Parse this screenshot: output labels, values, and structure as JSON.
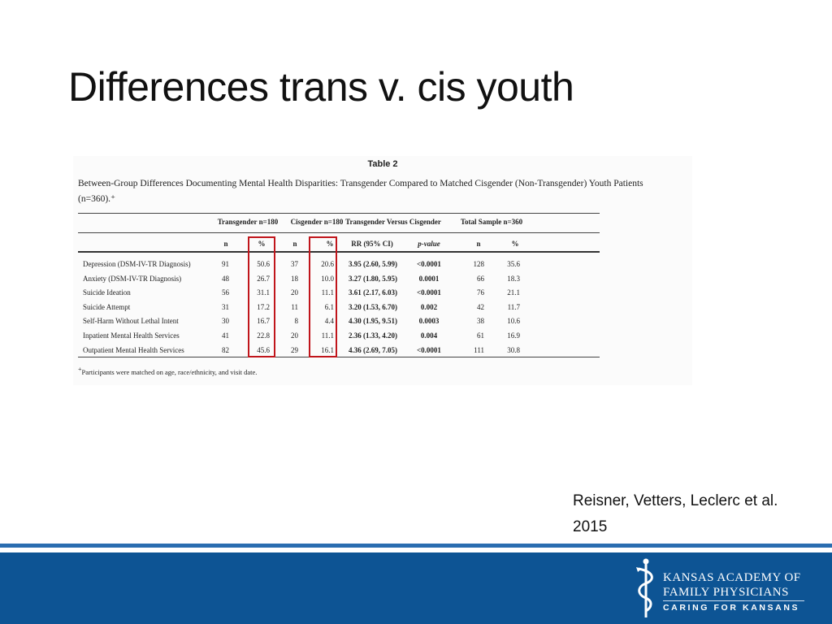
{
  "slide": {
    "title": "Differences trans v. cis youth",
    "citation_line1": "Reisner, Vetters, Leclerc et al.",
    "citation_line2": "2015"
  },
  "table": {
    "label": "Table 2",
    "caption_line1": "Between-Group Differences Documenting Mental Health Disparities: Transgender Compared to Matched Cisgender (Non-Transgender) Youth Patients",
    "caption_line2": "(n=360).⁺",
    "groups": [
      "Transgender n=180",
      "Cisgender n=180",
      "Transgender Versus Cisgender",
      "Total Sample n=360"
    ],
    "subheaders": [
      "n",
      "%",
      "n",
      "%",
      "RR (95% CI)",
      "p-value",
      "n",
      "%"
    ],
    "rows": [
      {
        "label": "Depression (DSM-IV-TR Diagnosis)",
        "tn": "91",
        "tp": "50.6",
        "cn": "37",
        "cp": "20.6",
        "rr": "3.95 (2.60, 5.99)",
        "p": "<0.0001",
        "sn": "128",
        "sp": "35.6"
      },
      {
        "label": "Anxiety (DSM-IV-TR Diagnosis)",
        "tn": "48",
        "tp": "26.7",
        "cn": "18",
        "cp": "10.0",
        "rr": "3.27 (1.80, 5.95)",
        "p": "0.0001",
        "sn": "66",
        "sp": "18.3"
      },
      {
        "label": "Suicide Ideation",
        "tn": "56",
        "tp": "31.1",
        "cn": "20",
        "cp": "11.1",
        "rr": "3.61 (2.17, 6.03)",
        "p": "<0.0001",
        "sn": "76",
        "sp": "21.1"
      },
      {
        "label": "Suicide Attempt",
        "tn": "31",
        "tp": "17.2",
        "cn": "11",
        "cp": "6.1",
        "rr": "3.20 (1.53, 6.70)",
        "p": "0.002",
        "sn": "42",
        "sp": "11.7"
      },
      {
        "label": "Self-Harm Without Lethal Intent",
        "tn": "30",
        "tp": "16.7",
        "cn": "8",
        "cp": "4.4",
        "rr": "4.30 (1.95, 9.51)",
        "p": "0.0003",
        "sn": "38",
        "sp": "10.6"
      },
      {
        "label": "Inpatient Mental Health Services",
        "tn": "41",
        "tp": "22.8",
        "cn": "20",
        "cp": "11.1",
        "rr": "2.36 (1.33, 4.20)",
        "p": "0.004",
        "sn": "61",
        "sp": "16.9"
      },
      {
        "label": "Outpatient Mental Health Services",
        "tn": "82",
        "tp": "45.6",
        "cn": "29",
        "cp": "16.1",
        "rr": "4.36 (2.69, 7.05)",
        "p": "<0.0001",
        "sn": "111",
        "sp": "30.8"
      }
    ],
    "footnote_mark": "+",
    "footnote": "Participants were matched on age, race/ethnicity, and visit date."
  },
  "footer": {
    "logo_line1": "KANSAS ACADEMY OF",
    "logo_line2": "FAMILY PHYSICIANS",
    "logo_line3": "CARING FOR KANSANS"
  },
  "colors": {
    "band": "#0d5494",
    "highlight": "#c0151b"
  }
}
